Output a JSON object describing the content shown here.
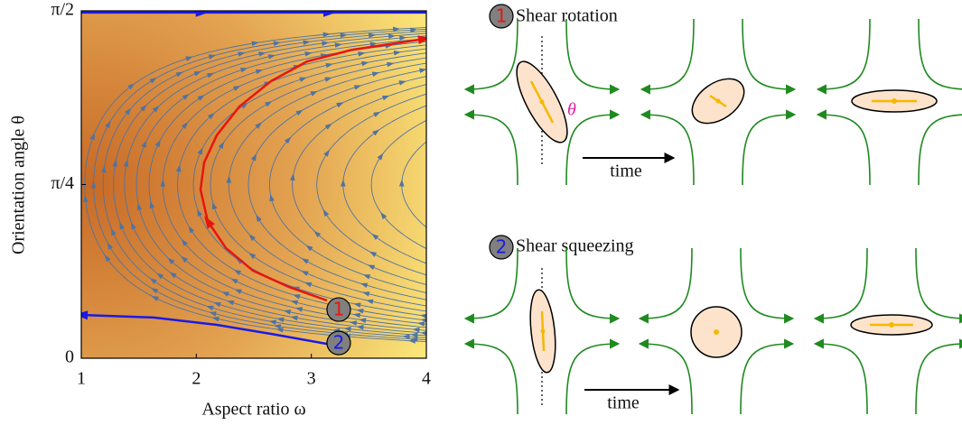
{
  "chart_data": {
    "type": "stream",
    "x_label": "Aspect ratio ω",
    "y_label": "Orientation angle θ",
    "xlim": [
      1,
      4
    ],
    "ylim": [
      0,
      1.5708
    ],
    "xticks": [
      1,
      2,
      3,
      4
    ],
    "yticks": [
      0,
      {
        "value": 0.7854,
        "label": "π/4"
      },
      {
        "value": 1.5708,
        "label": "π/2"
      }
    ],
    "series": [
      {
        "color": "#e8150f",
        "x": [
          3.136,
          2.806,
          2.492,
          2.257,
          2.099,
          2.037,
          2.068,
          2.178,
          2.374,
          2.649,
          2.963,
          3.356,
          3.984
        ],
        "y": [
          0.261,
          0.322,
          0.396,
          0.498,
          0.62,
          0.763,
          0.885,
          1.008,
          1.138,
          1.253,
          1.342,
          1.395,
          1.444
        ]
      },
      {
        "color": "#1a1ae6",
        "x": [
          3.136,
          2.649,
          2.178,
          1.628,
          1
        ],
        "y": [
          0.065,
          0.11,
          0.151,
          0.184,
          0.196
        ]
      },
      {
        "color": "#1a1ae6",
        "x": [
          1,
          4
        ],
        "y": [
          1.563,
          1.563
        ]
      }
    ],
    "markers": [
      {
        "label": "1",
        "label_color": "#e8150f",
        "x": 3.238,
        "y": 0.22
      },
      {
        "label": "2",
        "label_color": "#1a1ae6",
        "x": 3.238,
        "y": 0.069
      }
    ]
  },
  "panels": [
    {
      "number": "1",
      "number_color": "#e8150f",
      "title": "Shear rotation",
      "angle_label": "θ",
      "arrow_label": "time"
    },
    {
      "number": "2",
      "number_color": "#1a1ae6",
      "title": "Shear squeezing",
      "arrow_label": "time"
    }
  ]
}
